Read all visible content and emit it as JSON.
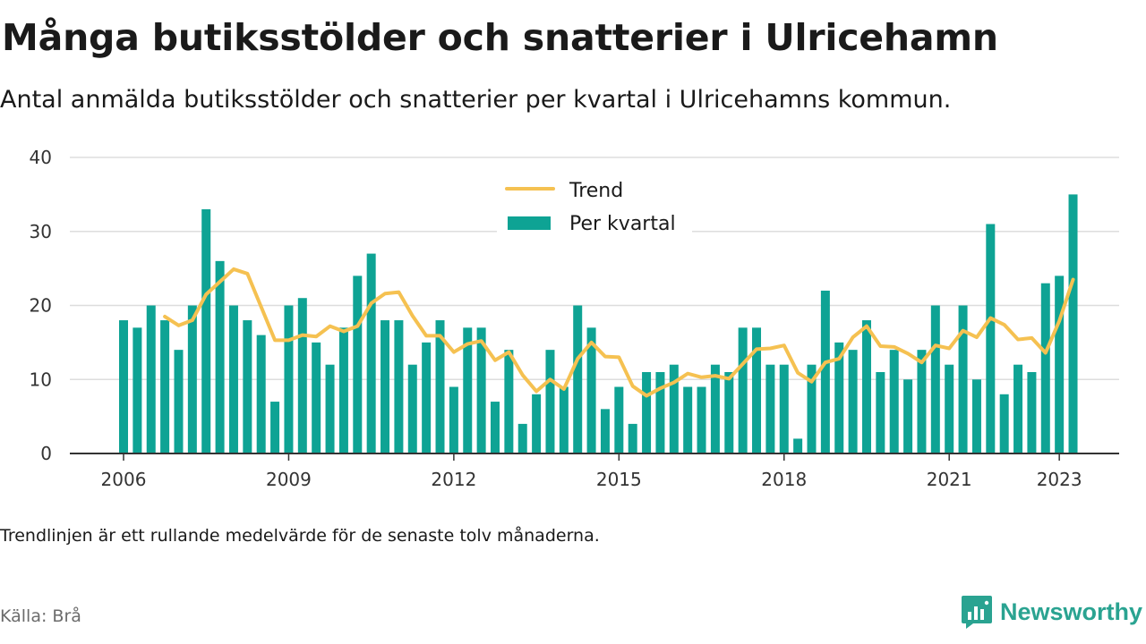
{
  "title": "Många butiksstölder och snatterier i Ulricehamn",
  "subtitle": "Antal anmälda butiksstölder och snatterier per kvartal i Ulricehamns kommun.",
  "note": "Trendlinjen är ett rullande medelvärde för de senaste tolv månaderna.",
  "source": "Källa: Brå",
  "brand": {
    "name": "Newsworthy",
    "icon": "newsworthy-logo-icon",
    "color": "#2aa391"
  },
  "chart_data": {
    "type": "bar",
    "x_start": "2006 Q1",
    "y_ticks": [
      0,
      10,
      20,
      30,
      40
    ],
    "ylim": [
      0,
      40
    ],
    "x_ticks": [
      "2006",
      "2009",
      "2012",
      "2015",
      "2018",
      "2021",
      "2023"
    ],
    "legend": {
      "placement": "top-center"
    },
    "colors": {
      "bars": "#0ea394",
      "trend": "#f5c151",
      "grid": "#dddddd",
      "axis": "#333333"
    },
    "series": [
      {
        "name": "Per kvartal",
        "type": "bar",
        "values": [
          18,
          17,
          20,
          18,
          14,
          20,
          33,
          26,
          20,
          18,
          16,
          7,
          20,
          21,
          15,
          12,
          17,
          24,
          27,
          18,
          18,
          12,
          15,
          18,
          9,
          17,
          17,
          7,
          14,
          4,
          8,
          14,
          9,
          20,
          17,
          6,
          9,
          4,
          11,
          11,
          12,
          9,
          9,
          12,
          11,
          17,
          17,
          12,
          12,
          2,
          12,
          22,
          15,
          14,
          18,
          11,
          14,
          10,
          14,
          20,
          12,
          20,
          10,
          31,
          8,
          12,
          11,
          23,
          24,
          35
        ]
      },
      {
        "name": "Trend",
        "type": "line",
        "values": [
          null,
          null,
          null,
          18.5,
          17.3,
          18,
          21.5,
          23.2,
          24.9,
          24.3,
          19.8,
          15.3,
          15.3,
          16,
          15.8,
          17.2,
          16.5,
          17.2,
          20.3,
          21.6,
          21.8,
          18.6,
          15.9,
          15.9,
          13.7,
          14.8,
          15.2,
          12.6,
          13.7,
          10.6,
          8.4,
          10,
          8.7,
          12.8,
          15,
          13.1,
          13,
          9.1,
          7.8,
          8.8,
          9.6,
          10.8,
          10.3,
          10.5,
          10.1,
          12.1,
          14.1,
          14.2,
          14.6,
          10.9,
          9.7,
          12.3,
          12.8,
          15.7,
          17.2,
          14.5,
          14.4,
          13.5,
          12.3,
          14.6,
          14.2,
          16.6,
          15.7,
          18.3,
          17.4,
          15.4,
          15.6,
          13.6,
          17.9,
          23.5
        ]
      }
    ]
  }
}
